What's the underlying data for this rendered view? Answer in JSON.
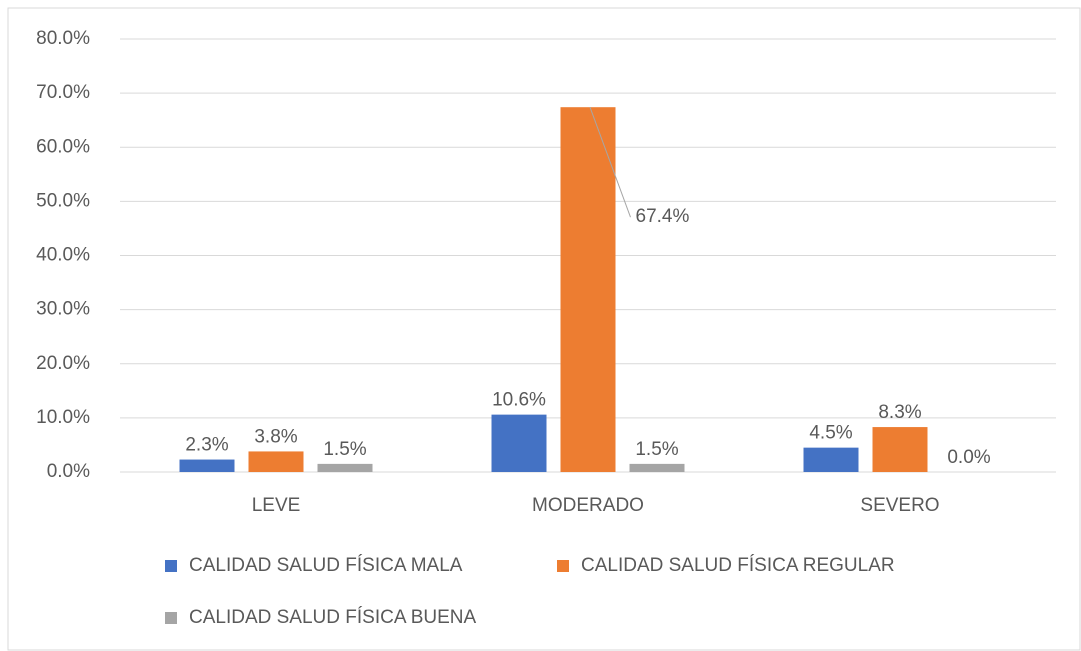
{
  "chart_data": {
    "type": "bar",
    "categories": [
      "LEVE",
      "MODERADO",
      "SEVERO"
    ],
    "series": [
      {
        "name": "CALIDAD SALUD FÍSICA MALA",
        "color": "#4472c4",
        "values": [
          2.3,
          10.6,
          4.5
        ],
        "value_labels": [
          "2.3%",
          "10.6%",
          "4.5%"
        ]
      },
      {
        "name": "CALIDAD SALUD FÍSICA REGULAR",
        "color": "#ed7d31",
        "values": [
          3.8,
          67.4,
          8.3
        ],
        "value_labels": [
          "3.8%",
          "67.4%",
          "8.3%"
        ]
      },
      {
        "name": "CALIDAD SALUD FÍSICA BUENA",
        "color": "#a5a5a5",
        "values": [
          1.5,
          1.5,
          0.0
        ],
        "value_labels": [
          "1.5%",
          "1.5%",
          "0.0%"
        ]
      }
    ],
    "ylim": [
      0,
      80
    ],
    "yticks": [
      {
        "value": 0,
        "label": "0.0%"
      },
      {
        "value": 10,
        "label": "10.0%"
      },
      {
        "value": 20,
        "label": "20.0%"
      },
      {
        "value": 30,
        "label": "30.0%"
      },
      {
        "value": 40,
        "label": "40.0%"
      },
      {
        "value": 50,
        "label": "50.0%"
      },
      {
        "value": 60,
        "label": "60.0%"
      },
      {
        "value": 70,
        "label": "70.0%"
      },
      {
        "value": 80,
        "label": "80.0%"
      }
    ],
    "grid": true,
    "legend": "bottom"
  }
}
